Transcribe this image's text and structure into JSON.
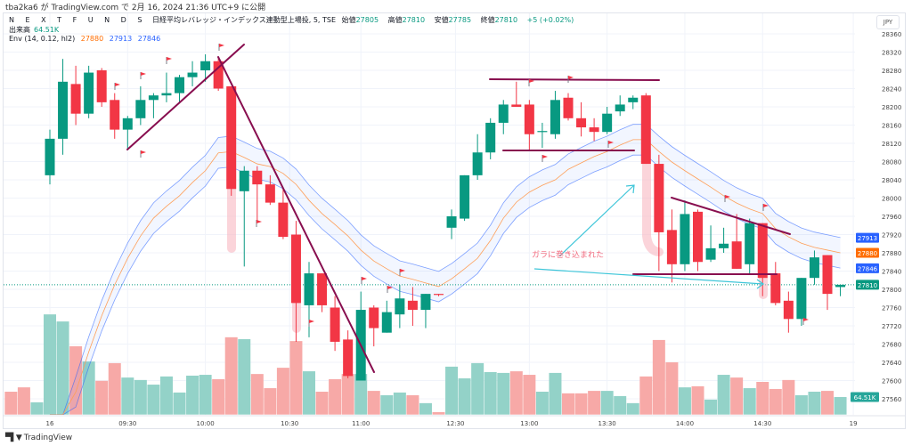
{
  "published": "tba2ka6 が TradingView.com で 2月 16, 2024 21:36 UTC+9 に公開",
  "legend": {
    "symbol_spaced": "N E X T   F U N D S",
    "symbol_name": "日経平均レバレッジ・インデックス連動型上場投, 5, TSE",
    "open_label": "始値",
    "open": "27805",
    "high_label": "高値",
    "high": "27810",
    "low_label": "安値",
    "low": "27785",
    "close_label": "終値",
    "close": "27810",
    "change": "+5 (+0.02%)",
    "volume_label": "出来高",
    "volume": "64.51K",
    "env_label": "Env (14, 0.12, hl2)",
    "env_basis": "27880",
    "env_upper": "27913",
    "env_lower": "27846"
  },
  "currency": "JPY",
  "annotation_text": "ガラに巻き込まれた",
  "branding": "TradingView",
  "colors": {
    "up": "#089981",
    "down": "#f23645",
    "vol_up": "#93d2c8",
    "vol_down": "#f7a9a7",
    "env_band": "#2962ff",
    "env_basis": "#ff9e57",
    "drawing": "#880e4f",
    "arrow": "#3fc6d9"
  },
  "chart_data": {
    "type": "candlestick",
    "interval": "5",
    "ylim": [
      27560,
      28360
    ],
    "y_ticks": [
      "28360",
      "28320",
      "28280",
      "28240",
      "28200",
      "28160",
      "28120",
      "28080",
      "28040",
      "28000",
      "27960",
      "27920",
      "27880",
      "27840",
      "27800",
      "27760",
      "27720",
      "27680",
      "27640",
      "27600",
      "27560"
    ],
    "x_ticks": [
      {
        "label": "16",
        "index": 0
      },
      {
        "label": "09:30",
        "index": 6
      },
      {
        "label": "10:00",
        "index": 12
      },
      {
        "label": "10:30",
        "index": 18.5
      },
      {
        "label": "11:00",
        "index": 24
      },
      {
        "label": "12:30",
        "index": 31.3
      },
      {
        "label": "13:00",
        "index": 37
      },
      {
        "label": "13:30",
        "index": 43
      },
      {
        "label": "14:00",
        "index": 49
      },
      {
        "label": "14:30",
        "index": 55
      },
      {
        "label": "19",
        "index": 62
      }
    ],
    "price_tags": [
      {
        "label": "27913",
        "value": 27913,
        "color": "#2962ff"
      },
      {
        "label": "27880",
        "value": 27880,
        "color": "#ff6d00"
      },
      {
        "label": "27846",
        "value": 27846,
        "color": "#2962ff"
      },
      {
        "label": "27810",
        "value": 27810,
        "color": "#089981"
      }
    ],
    "volume_tag": {
      "label": "64.51K",
      "value": 64.51,
      "color": "#26a69a"
    },
    "prev_volumes_k": [
      [
        84,
        "down"
      ],
      [
        100,
        "down"
      ],
      [
        45,
        "up"
      ]
    ],
    "ohlc": [
      [
        28050,
        28150,
        28030,
        28130
      ],
      [
        28130,
        28305,
        28095,
        28255
      ],
      [
        28250,
        28290,
        28160,
        28185
      ],
      [
        28185,
        28290,
        28175,
        28275
      ],
      [
        28280,
        28285,
        28200,
        28210
      ],
      [
        28215,
        28230,
        28130,
        28150
      ],
      [
        28150,
        28180,
        28105,
        28175
      ],
      [
        28175,
        28245,
        28160,
        28215
      ],
      [
        28215,
        28230,
        28175,
        28225
      ],
      [
        28225,
        28275,
        28210,
        28230
      ],
      [
        28230,
        28270,
        28210,
        28265
      ],
      [
        28265,
        28300,
        28245,
        28275
      ],
      [
        28280,
        28315,
        28255,
        28300
      ],
      [
        28300,
        28310,
        28235,
        28240
      ],
      [
        28245,
        28245,
        28005,
        28020
      ],
      [
        28015,
        28070,
        27850,
        28060
      ],
      [
        28060,
        28070,
        27950,
        28030
      ],
      [
        28030,
        28050,
        27985,
        27990
      ],
      [
        27990,
        28020,
        27910,
        27915
      ],
      [
        27920,
        27950,
        27685,
        27770
      ],
      [
        27765,
        27860,
        27695,
        27835
      ],
      [
        27835,
        27835,
        27750,
        27765
      ],
      [
        27760,
        27785,
        27665,
        27685
      ],
      [
        27690,
        27710,
        27605,
        27610
      ],
      [
        27600,
        27795,
        27600,
        27755
      ],
      [
        27760,
        27765,
        27675,
        27715
      ],
      [
        27705,
        27775,
        27705,
        27750
      ],
      [
        27745,
        27810,
        27715,
        27780
      ],
      [
        27775,
        27805,
        27720,
        27755
      ],
      [
        27755,
        27790,
        27715,
        27790
      ],
      [
        27790,
        27790,
        27785,
        27788
      ],
      [
        27935,
        27975,
        27910,
        27960
      ],
      [
        27955,
        28050,
        27950,
        28050
      ],
      [
        28050,
        28140,
        28040,
        28100
      ],
      [
        28100,
        28175,
        28085,
        28165
      ],
      [
        28165,
        28215,
        28140,
        28205
      ],
      [
        28205,
        28255,
        28200,
        28200
      ],
      [
        28205,
        28215,
        28105,
        28140
      ],
      [
        28145,
        28165,
        28110,
        28147
      ],
      [
        28140,
        28235,
        28130,
        28215
      ],
      [
        28220,
        28230,
        28170,
        28175
      ],
      [
        28175,
        28210,
        28135,
        28155
      ],
      [
        28155,
        28175,
        28125,
        28145
      ],
      [
        28145,
        28200,
        28140,
        28185
      ],
      [
        28190,
        28225,
        28180,
        28205
      ],
      [
        28210,
        28225,
        28195,
        28220
      ],
      [
        28225,
        28230,
        28075,
        28075
      ],
      [
        28075,
        28095,
        27840,
        27925
      ],
      [
        27930,
        27975,
        27815,
        27855
      ],
      [
        27855,
        27995,
        27840,
        27965
      ],
      [
        27970,
        27975,
        27840,
        27860
      ],
      [
        27865,
        27940,
        27860,
        27890
      ],
      [
        27890,
        27935,
        27880,
        27900
      ],
      [
        27905,
        27965,
        27845,
        27845
      ],
      [
        27855,
        27955,
        27835,
        27945
      ],
      [
        27945,
        27945,
        27785,
        27825
      ],
      [
        27835,
        27860,
        27765,
        27770
      ],
      [
        27775,
        27795,
        27705,
        27735
      ],
      [
        27735,
        27825,
        27720,
        27825
      ],
      [
        27825,
        27885,
        27810,
        27870
      ],
      [
        27875,
        27875,
        27755,
        27790
      ],
      [
        27805,
        27810,
        27785,
        27810
      ]
    ],
    "volume_k": [
      368,
      342,
      251,
      195,
      124,
      189,
      136,
      127,
      110,
      140,
      81,
      143,
      146,
      130,
      284,
      277,
      149,
      97,
      172,
      270,
      159,
      84,
      130,
      149,
      149,
      87,
      71,
      81,
      71,
      42,
      9,
      176,
      133,
      189,
      156,
      153,
      159,
      146,
      84,
      153,
      78,
      78,
      87,
      87,
      68,
      42,
      140,
      274,
      192,
      100,
      104,
      55,
      146,
      136,
      97,
      120,
      94,
      127,
      71,
      84,
      87,
      64.51
    ],
    "envelope": {
      "length": 14,
      "percent": 0.12,
      "source": "hl2",
      "basis": [
        27420,
        27478,
        27575,
        27663,
        27742,
        27810,
        27868,
        27917,
        27956,
        27982,
        28005,
        28034,
        28060,
        28099,
        28102,
        28089,
        28075,
        28069,
        28054,
        28030,
        27995,
        27966,
        27942,
        27917,
        27886,
        27862,
        27845,
        27829,
        27822,
        27814,
        27806,
        27823,
        27845,
        27868,
        27907,
        27956,
        27991,
        28013,
        28028,
        28040,
        28063,
        28077,
        28091,
        28102,
        28116,
        28128,
        28128,
        28102,
        28079,
        28060,
        28042,
        28024,
        28005,
        27989,
        27976,
        27966,
        27933,
        27915,
        27901,
        27892,
        27886,
        27880
      ]
    },
    "current_price": 27810
  }
}
